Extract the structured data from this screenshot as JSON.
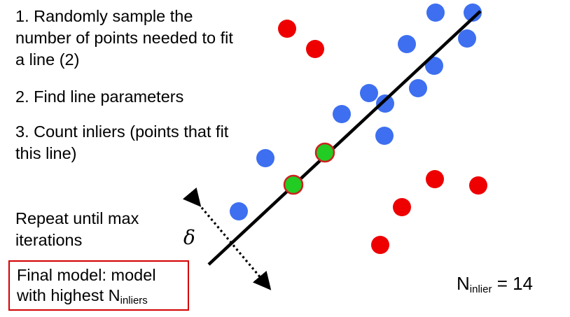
{
  "steps": {
    "step1": "1. Randomly sample the number of points needed to fit a line (2)",
    "step2": "2. Find line parameters",
    "step3": "3. Count inliers (points that fit this line)"
  },
  "repeat": "Repeat until max iterations",
  "final_model": {
    "prefix": "Final model: model with highest N",
    "subscript": "inliers"
  },
  "n_inlier": {
    "base": "N",
    "subscript": "inlier",
    "suffix": " = 14"
  },
  "delta_symbol": "δ",
  "colors": {
    "inlier": "#3d6ff0",
    "outlier": "#ee0000",
    "sample": "#22cc22",
    "sample_border": "#cc2222",
    "line": "#000000",
    "box_border": "#d40000"
  },
  "legend_icons": [
    "dotted-double-arrow-icon"
  ]
}
